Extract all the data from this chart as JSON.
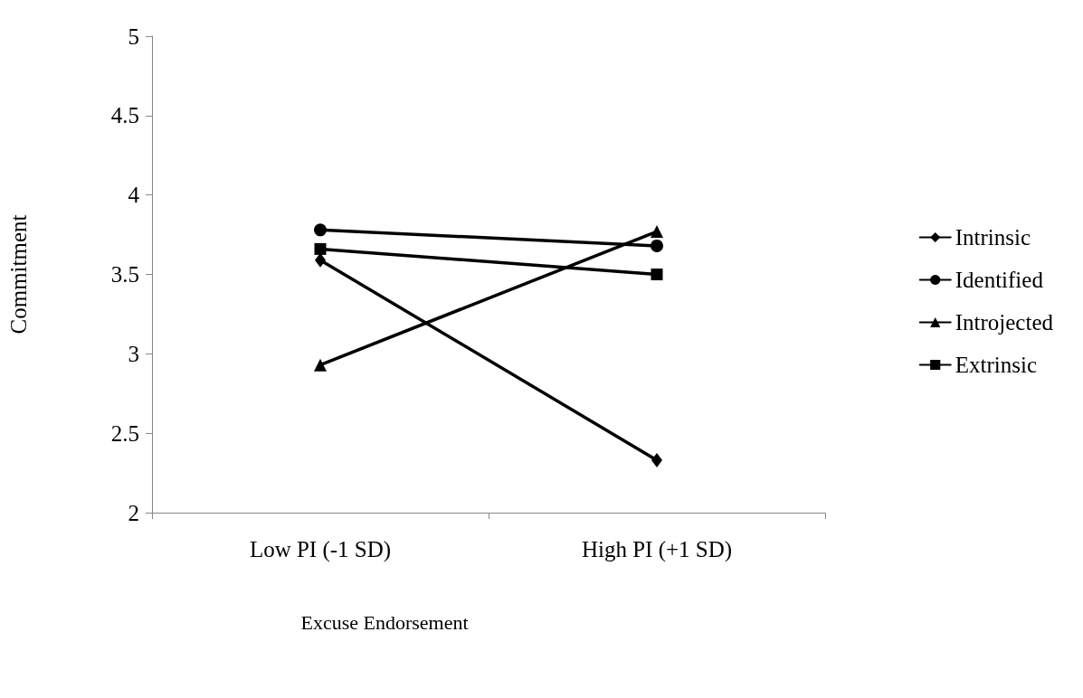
{
  "chart_data": {
    "type": "line",
    "xlabel": "Excuse Endorsement",
    "ylabel": "Commitment",
    "categories": [
      "Low PI (-1 SD)",
      "High PI (+1 SD)"
    ],
    "series": [
      {
        "name": "Intrinsic",
        "color": "#000000",
        "marker": "diamond",
        "values": [
          3.59,
          2.33
        ]
      },
      {
        "name": "Identified",
        "color": "#000000",
        "marker": "circle",
        "values": [
          3.78,
          3.68
        ]
      },
      {
        "name": "Introjected",
        "color": "#000000",
        "marker": "triangle",
        "values": [
          2.93,
          3.77
        ]
      },
      {
        "name": "Extrinsic",
        "color": "#000000",
        "marker": "square",
        "values": [
          3.66,
          3.5
        ]
      }
    ],
    "ylim": [
      2,
      5
    ],
    "yticks": [
      2,
      2.5,
      3,
      3.5,
      4,
      4.5,
      5
    ],
    "grid": false,
    "legend": "right",
    "line_style": "solid"
  }
}
